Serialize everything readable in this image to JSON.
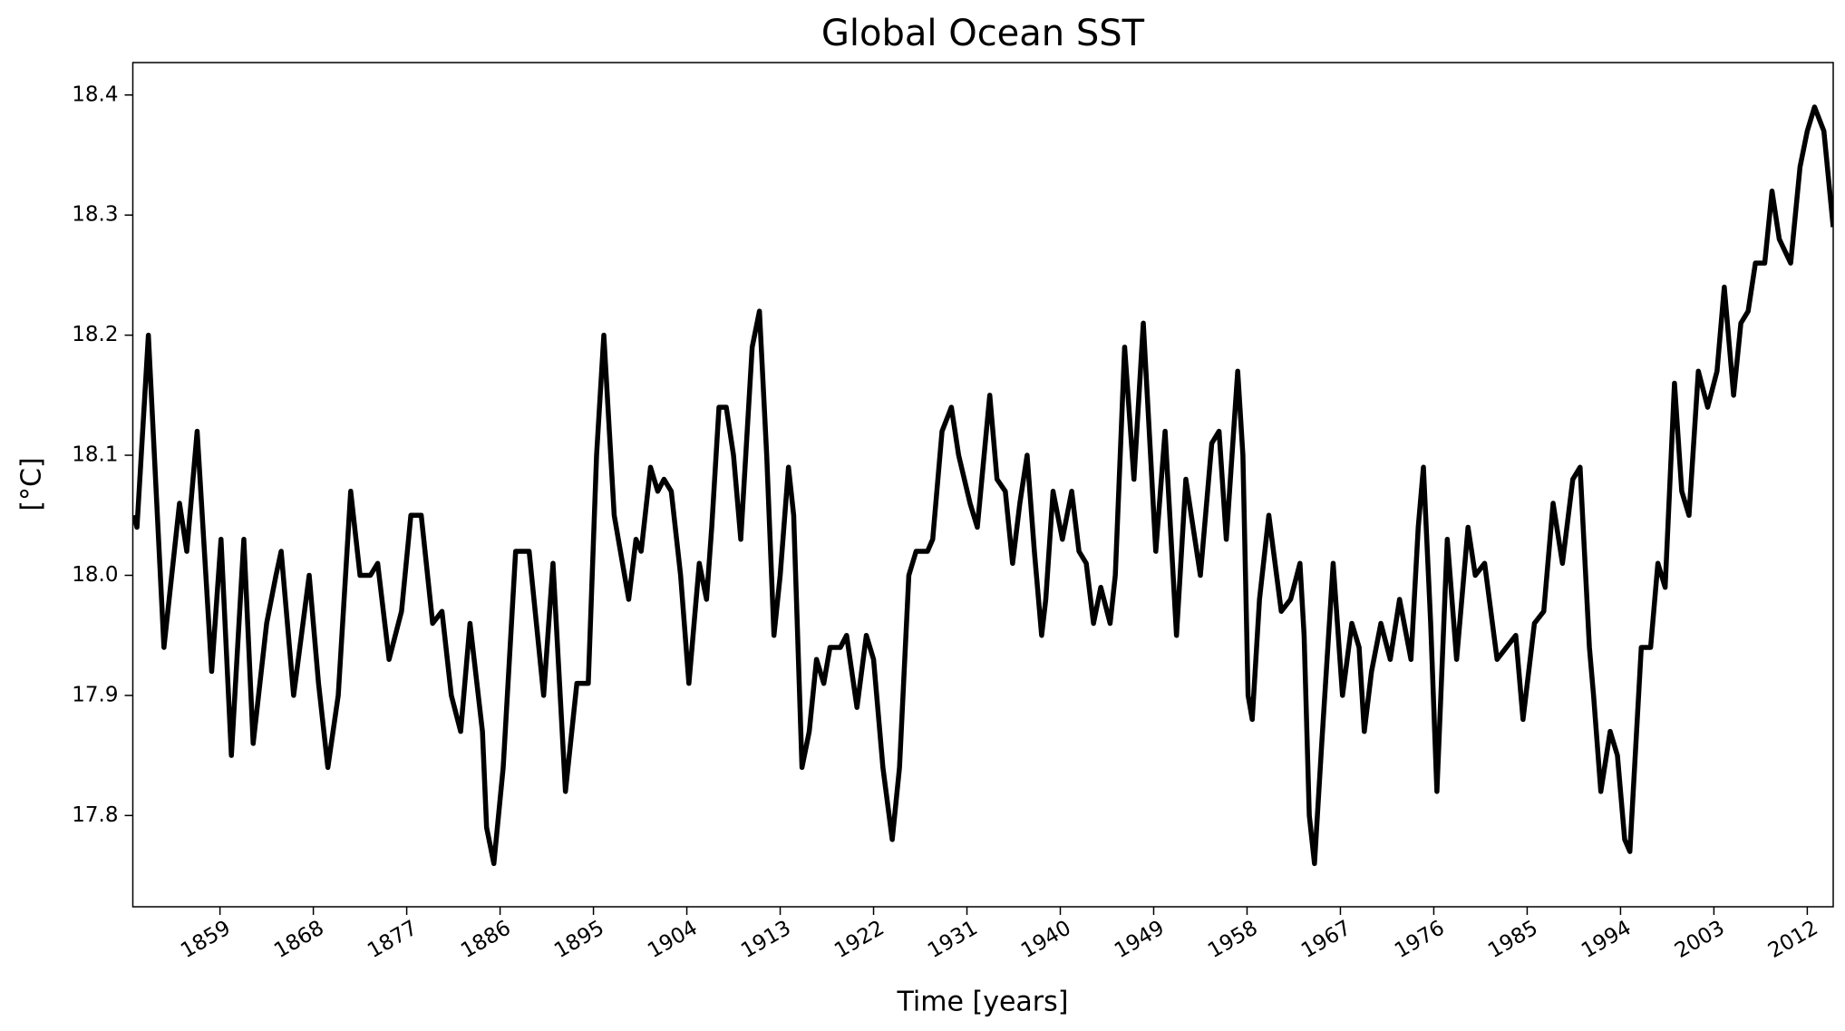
{
  "chart_data": {
    "type": "line",
    "title": "Global Ocean SST",
    "xlabel": "Time [years]",
    "ylabel": "[°C]",
    "x": [
      1850.7,
      1851.0,
      1852.1,
      1853.6,
      1855.1,
      1855.8,
      1856.8,
      1858.2,
      1859.1,
      1860.1,
      1861.3,
      1862.2,
      1863.5,
      1864.4,
      1864.9,
      1866.1,
      1867.6,
      1868.5,
      1869.4,
      1870.4,
      1871.6,
      1872.5,
      1873.5,
      1874.2,
      1875.3,
      1876.5,
      1877.4,
      1878.4,
      1879.5,
      1880.4,
      1881.3,
      1882.2,
      1883.1,
      1884.3,
      1884.7,
      1885.4,
      1886.3,
      1887.5,
      1888.8,
      1890.2,
      1891.1,
      1892.3,
      1893.4,
      1894.5,
      1895.3,
      1896.0,
      1897.0,
      1898.4,
      1899.1,
      1899.6,
      1900.5,
      1901.2,
      1901.8,
      1902.5,
      1903.4,
      1904.2,
      1905.2,
      1905.9,
      1906.4,
      1907.1,
      1907.8,
      1908.5,
      1909.2,
      1910.3,
      1911.0,
      1911.7,
      1912.4,
      1913.0,
      1913.8,
      1914.3,
      1915.1,
      1915.8,
      1916.5,
      1917.2,
      1917.8,
      1918.8,
      1919.4,
      1920.4,
      1921.3,
      1922.0,
      1922.9,
      1923.8,
      1924.5,
      1925.4,
      1926.1,
      1927.2,
      1927.7,
      1928.6,
      1929.5,
      1930.2,
      1931.3,
      1932.0,
      1933.2,
      1933.9,
      1934.7,
      1935.4,
      1936.1,
      1936.8,
      1937.5,
      1938.2,
      1938.6,
      1939.3,
      1940.2,
      1941.1,
      1941.8,
      1942.5,
      1943.2,
      1943.9,
      1944.8,
      1945.3,
      1946.2,
      1947.1,
      1948.0,
      1948.7,
      1949.2,
      1950.1,
      1951.2,
      1952.1,
      1953.5,
      1954.6,
      1955.3,
      1956.0,
      1957.1,
      1957.6,
      1958.1,
      1958.5,
      1959.2,
      1960.1,
      1961.3,
      1962.2,
      1963.1,
      1963.5,
      1964.0,
      1964.5,
      1965.2,
      1966.3,
      1967.2,
      1968.1,
      1968.8,
      1969.3,
      1970.0,
      1970.9,
      1971.8,
      1972.7,
      1973.8,
      1974.5,
      1975.0,
      1975.7,
      1976.3,
      1977.3,
      1978.2,
      1979.3,
      1980.0,
      1980.9,
      1982.1,
      1983.0,
      1983.9,
      1984.6,
      1985.7,
      1986.6,
      1987.5,
      1988.4,
      1989.4,
      1990.1,
      1991.0,
      1991.4,
      1992.1,
      1993.0,
      1993.7,
      1994.4,
      1994.9,
      1996.0,
      1996.9,
      1997.6,
      1998.3,
      1999.2,
      1999.9,
      2000.6,
      2001.5,
      2002.4,
      2003.3,
      2004.0,
      2004.9,
      2005.6,
      2006.3,
      2007.0,
      2007.9,
      2008.6,
      2009.3,
      2010.4,
      2011.3,
      2012.0,
      2012.7,
      2013.6,
      2014.5
    ],
    "values": [
      18.05,
      18.04,
      18.2,
      17.94,
      18.06,
      18.02,
      18.12,
      17.92,
      18.03,
      17.85,
      18.03,
      17.86,
      17.96,
      18.0,
      18.02,
      17.9,
      18.0,
      17.91,
      17.84,
      17.9,
      18.07,
      18.0,
      18.0,
      18.01,
      17.93,
      17.97,
      18.05,
      18.05,
      17.96,
      17.97,
      17.9,
      17.87,
      17.96,
      17.87,
      17.79,
      17.76,
      17.84,
      18.02,
      18.02,
      17.9,
      18.01,
      17.82,
      17.91,
      17.91,
      18.1,
      18.2,
      18.05,
      17.98,
      18.03,
      18.02,
      18.09,
      18.07,
      18.08,
      18.07,
      18.0,
      17.91,
      18.01,
      17.98,
      18.04,
      18.14,
      18.14,
      18.1,
      18.03,
      18.19,
      18.22,
      18.1,
      17.95,
      18.0,
      18.09,
      18.05,
      17.84,
      17.87,
      17.93,
      17.91,
      17.94,
      17.94,
      17.95,
      17.89,
      17.95,
      17.93,
      17.84,
      17.78,
      17.84,
      18.0,
      18.02,
      18.02,
      18.03,
      18.12,
      18.14,
      18.1,
      18.06,
      18.04,
      18.15,
      18.08,
      18.07,
      18.01,
      18.06,
      18.1,
      18.02,
      17.95,
      17.98,
      18.07,
      18.03,
      18.07,
      18.02,
      18.01,
      17.96,
      17.99,
      17.96,
      18.0,
      18.19,
      18.08,
      18.21,
      18.1,
      18.02,
      18.12,
      17.95,
      18.08,
      18.0,
      18.11,
      18.12,
      18.03,
      18.17,
      18.1,
      17.9,
      17.88,
      17.98,
      18.05,
      17.97,
      17.98,
      18.01,
      17.95,
      17.8,
      17.76,
      17.86,
      18.01,
      17.9,
      17.96,
      17.94,
      17.87,
      17.92,
      17.96,
      17.93,
      17.98,
      17.93,
      18.04,
      18.09,
      17.96,
      17.82,
      18.03,
      17.93,
      18.04,
      18.0,
      18.01,
      17.93,
      17.94,
      17.95,
      17.88,
      17.96,
      17.97,
      18.06,
      18.01,
      18.08,
      18.09,
      17.94,
      17.9,
      17.82,
      17.87,
      17.85,
      17.78,
      17.77,
      17.94,
      17.94,
      18.01,
      17.99,
      18.16,
      18.07,
      18.05,
      18.17,
      18.14,
      18.17,
      18.24,
      18.15,
      18.21,
      18.22,
      18.26,
      18.26,
      18.32,
      18.28,
      18.26,
      18.34,
      18.37,
      18.39,
      18.37,
      18.29
    ],
    "color": "#000000",
    "xlim": [
      1850.6,
      2014.5
    ],
    "xticks": [
      1859,
      1868,
      1877,
      1886,
      1895,
      1904,
      1913,
      1922,
      1931,
      1940,
      1949,
      1958,
      1967,
      1976,
      1985,
      1994,
      2003,
      2012
    ],
    "ylim": [
      17.724,
      18.427
    ],
    "yticks": [
      17.8,
      17.9,
      {
        "value": 18.0,
        "label": "18.0"
      },
      18.1,
      18.2,
      18.3,
      18.4
    ]
  }
}
